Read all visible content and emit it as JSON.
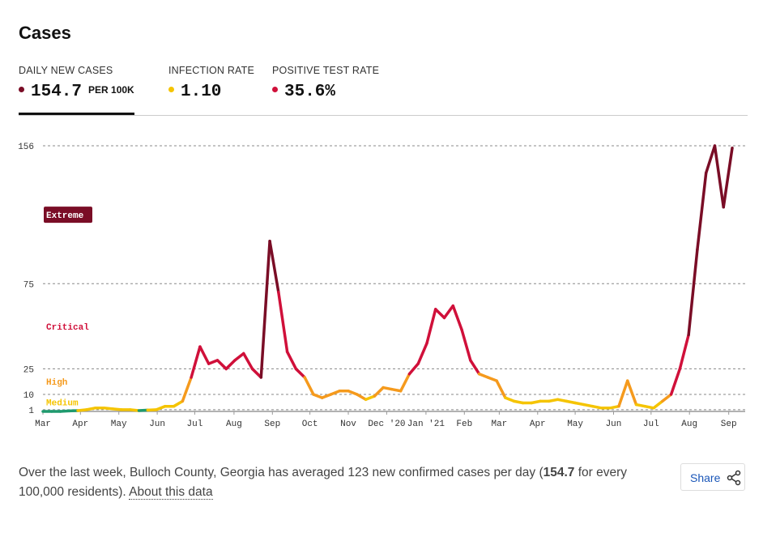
{
  "header": {
    "title": "Cases"
  },
  "tabs": [
    {
      "label": "DAILY NEW CASES",
      "value": "154.7",
      "unit": "PER 100K",
      "color": "#7a0d26"
    },
    {
      "label": "INFECTION RATE",
      "value": "1.10",
      "color": "#f5c400"
    },
    {
      "label": "POSITIVE TEST RATE",
      "value": "35.6%",
      "color": "#d0103a"
    }
  ],
  "chart_data": {
    "type": "line",
    "values": [
      0,
      0,
      0,
      0.3,
      0.5,
      1,
      2,
      2,
      1.5,
      1,
      1,
      0.5,
      0.8,
      1,
      3,
      3,
      6,
      20,
      38,
      28,
      30,
      25,
      30,
      34,
      25,
      20,
      100,
      70,
      35,
      25,
      20,
      10,
      8,
      10,
      12,
      12,
      10,
      7,
      9,
      14,
      13,
      12,
      22,
      28,
      40,
      60,
      55,
      62,
      48,
      30,
      22,
      20,
      18,
      8,
      6,
      5,
      5,
      6,
      6,
      7,
      6,
      5,
      4,
      3,
      2,
      2,
      3,
      18,
      4,
      3,
      2,
      6,
      10,
      25,
      45,
      95,
      140,
      156,
      120,
      154.7
    ],
    "xlim": [
      0,
      79
    ],
    "xticks": [
      {
        "value": 0,
        "label": "Mar"
      },
      {
        "value": 4.3,
        "label": "Apr"
      },
      {
        "value": 8.7,
        "label": "May"
      },
      {
        "value": 13.1,
        "label": "Jun"
      },
      {
        "value": 17.4,
        "label": "Jul"
      },
      {
        "value": 21.9,
        "label": "Aug"
      },
      {
        "value": 26.3,
        "label": "Sep"
      },
      {
        "value": 30.6,
        "label": "Oct"
      },
      {
        "value": 35,
        "label": "Nov"
      },
      {
        "value": 39.4,
        "label": "Dec '20"
      },
      {
        "value": 43.9,
        "label": "Jan '21"
      },
      {
        "value": 48.3,
        "label": "Feb"
      },
      {
        "value": 52.3,
        "label": "Mar"
      },
      {
        "value": 56.7,
        "label": "Apr"
      },
      {
        "value": 61,
        "label": "May"
      },
      {
        "value": 65.4,
        "label": "Jun"
      },
      {
        "value": 69.7,
        "label": "Jul"
      },
      {
        "value": 74.1,
        "label": "Aug"
      },
      {
        "value": 78.6,
        "label": "Sep"
      }
    ],
    "ylim": [
      0,
      156
    ],
    "yticks": [
      1,
      10,
      25,
      75,
      156
    ],
    "grid": true,
    "low_color": "#1f9a6e",
    "levels": [
      {
        "name": "Medium",
        "min": 1,
        "max": 10,
        "color": "#f5c400"
      },
      {
        "name": "High",
        "min": 10,
        "max": 25,
        "color": "#f59a1d"
      },
      {
        "name": "Critical",
        "min": 25,
        "max": 75,
        "color": "#d0103a"
      },
      {
        "name": "Extreme",
        "min": 75,
        "max": 156,
        "color": "#7a0d26"
      }
    ]
  },
  "footer": {
    "text": "Over the last week, Bulloch County, Georgia has averaged 123 new confirmed cases per day (",
    "bold": "154.7",
    "text2": " for every 100,000 residents). ",
    "link": "About this data",
    "share": "Share"
  }
}
